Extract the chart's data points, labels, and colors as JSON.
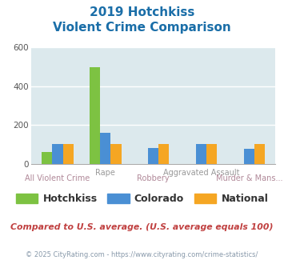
{
  "title_line1": "2019 Hotchkiss",
  "title_line2": "Violent Crime Comparison",
  "categories": [
    "All Violent Crime",
    "Rape",
    "Robbery",
    "Aggravated Assault",
    "Murder & Mans..."
  ],
  "series": {
    "Hotchkiss": [
      60,
      500,
      0,
      0,
      0
    ],
    "Colorado": [
      100,
      160,
      80,
      100,
      75
    ],
    "National": [
      100,
      100,
      100,
      100,
      100
    ]
  },
  "colors": {
    "Hotchkiss": "#7dc242",
    "Colorado": "#4a8fd4",
    "National": "#f5a623"
  },
  "ylim": [
    0,
    600
  ],
  "yticks": [
    0,
    200,
    400,
    600
  ],
  "bg_color": "#dce9ed",
  "grid_color": "#ffffff",
  "title_color": "#1a6ea8",
  "xlabel_top_color": "#999999",
  "xlabel_bottom_color": "#b08898",
  "footer_text": "Compared to U.S. average. (U.S. average equals 100)",
  "footer_color": "#c04040",
  "copyright_text": "© 2025 CityRating.com - https://www.cityrating.com/crime-statistics/",
  "copyright_color": "#8899aa",
  "legend_text_color": "#333333"
}
